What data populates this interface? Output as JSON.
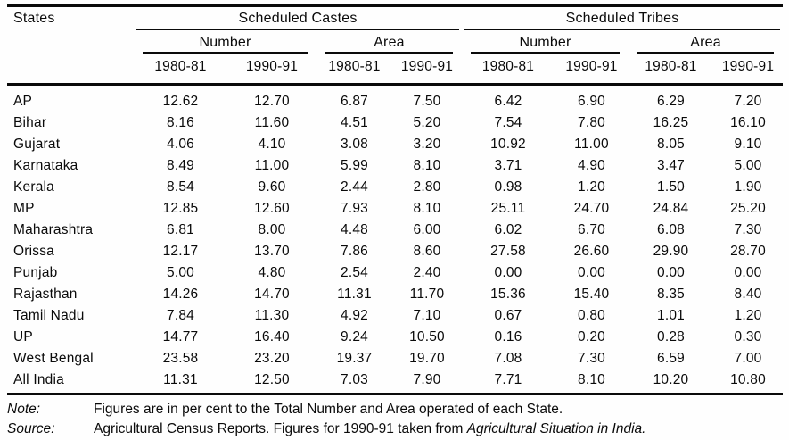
{
  "table": {
    "states_header": "States",
    "groups": [
      {
        "label": "Scheduled Castes",
        "subgroups": [
          "Number",
          "Area"
        ]
      },
      {
        "label": "Scheduled Tribes",
        "subgroups": [
          "Number",
          "Area"
        ]
      }
    ],
    "year_headers": [
      "1980-81",
      "1990-91",
      "1980-81",
      "1990-91",
      "1980-81",
      "1990-91",
      "1980-81",
      "1990-91"
    ],
    "rows": [
      {
        "state": "AP",
        "values": [
          "12.62",
          "12.70",
          "6.87",
          "7.50",
          "6.42",
          "6.90",
          "6.29",
          "7.20"
        ]
      },
      {
        "state": "Bihar",
        "values": [
          "8.16",
          "11.60",
          "4.51",
          "5.20",
          "7.54",
          "7.80",
          "16.25",
          "16.10"
        ]
      },
      {
        "state": "Gujarat",
        "values": [
          "4.06",
          "4.10",
          "3.08",
          "3.20",
          "10.92",
          "11.00",
          "8.05",
          "9.10"
        ]
      },
      {
        "state": "Karnataka",
        "values": [
          "8.49",
          "11.00",
          "5.99",
          "8.10",
          "3.71",
          "4.90",
          "3.47",
          "5.00"
        ]
      },
      {
        "state": "Kerala",
        "values": [
          "8.54",
          "9.60",
          "2.44",
          "2.80",
          "0.98",
          "1.20",
          "1.50",
          "1.90"
        ]
      },
      {
        "state": "MP",
        "values": [
          "12.85",
          "12.60",
          "7.93",
          "8.10",
          "25.11",
          "24.70",
          "24.84",
          "25.20"
        ]
      },
      {
        "state": "Maharashtra",
        "values": [
          "6.81",
          "8.00",
          "4.48",
          "6.00",
          "6.02",
          "6.70",
          "6.08",
          "7.30"
        ]
      },
      {
        "state": "Orissa",
        "values": [
          "12.17",
          "13.70",
          "7.86",
          "8.60",
          "27.58",
          "26.60",
          "29.90",
          "28.70"
        ]
      },
      {
        "state": "Punjab",
        "values": [
          "5.00",
          "4.80",
          "2.54",
          "2.40",
          "0.00",
          "0.00",
          "0.00",
          "0.00"
        ]
      },
      {
        "state": "Rajasthan",
        "values": [
          "14.26",
          "14.70",
          "11.31",
          "11.70",
          "15.36",
          "15.40",
          "8.35",
          "8.40"
        ]
      },
      {
        "state": "Tamil Nadu",
        "values": [
          "7.84",
          "11.30",
          "4.92",
          "7.10",
          "0.67",
          "0.80",
          "1.01",
          "1.20"
        ]
      },
      {
        "state": "UP",
        "values": [
          "14.77",
          "16.40",
          "9.24",
          "10.50",
          "0.16",
          "0.20",
          "0.28",
          "0.30"
        ]
      },
      {
        "state": "West Bengal",
        "values": [
          "23.58",
          "23.20",
          "19.37",
          "19.70",
          "7.08",
          "7.30",
          "6.59",
          "7.00"
        ]
      },
      {
        "state": "All India",
        "values": [
          "11.31",
          "12.50",
          "7.03",
          "7.90",
          "7.71",
          "8.10",
          "10.20",
          "10.80"
        ]
      }
    ]
  },
  "footer": {
    "note_label": "Note:",
    "note_text": "Figures are in per cent to the Total Number and Area operated of each State.",
    "source_label": "Source:",
    "source_text_plain": "Agricultural Census Reports. Figures for 1990-91 taken from ",
    "source_text_italic": "Agricultural Situation in India."
  }
}
